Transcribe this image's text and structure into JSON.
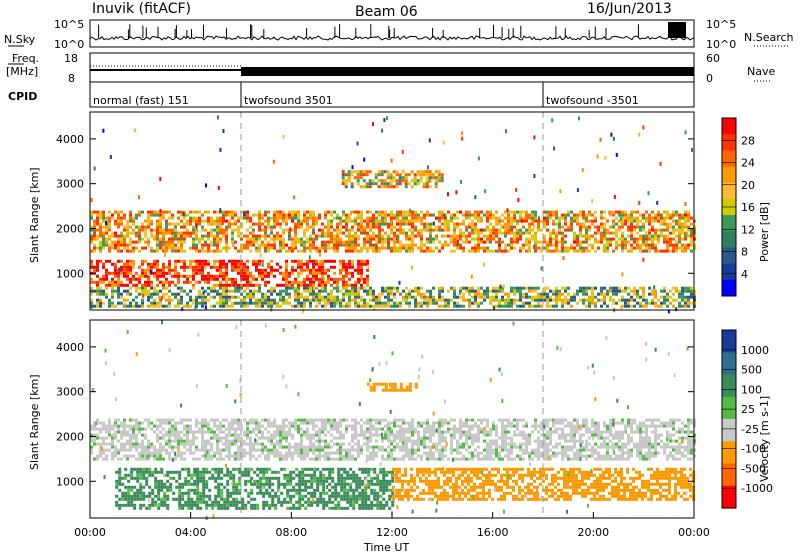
{
  "header": {
    "title": "Inuvik (fitACF)",
    "beam": "Beam 06",
    "date": "16/Jun/2013"
  },
  "panels": {
    "nsky": {
      "label": "N.Sky",
      "right_label": "N.Search",
      "left_ticks": [
        "10^5",
        "10^0"
      ],
      "right_ticks": [
        "10^5",
        "10^0"
      ]
    },
    "freq": {
      "label": "Freq.",
      "unit": "[MHz]",
      "right_label": "Nave",
      "left_ticks": [
        "18",
        "8"
      ],
      "right_ticks": [
        "60",
        "0"
      ]
    },
    "cpid": {
      "label": "CPID",
      "segments": [
        {
          "name": "normal (fast) 151",
          "start_hour": 0,
          "end_hour": 6
        },
        {
          "name": "twofsound 3501",
          "start_hour": 6,
          "end_hour": 18
        },
        {
          "name": "twofsound -3501",
          "start_hour": 18,
          "end_hour": 24
        }
      ]
    }
  },
  "chart_data": [
    {
      "type": "heatmap",
      "title": "",
      "xlabel": "Time UT",
      "ylabel": "Slant Range [km]",
      "xlim": [
        0,
        24
      ],
      "ylim": [
        180,
        4600
      ],
      "yticks": [
        "4000",
        "3000",
        "2000",
        "1000"
      ],
      "ytick_values": [
        4000,
        3000,
        2000,
        1000
      ],
      "colorbar": {
        "label": "Power [dB]",
        "ticks": [
          "28",
          "24",
          "20",
          "16",
          "12",
          "8",
          "4"
        ],
        "tick_values": [
          28,
          24,
          20,
          16,
          12,
          8,
          4
        ],
        "colors": [
          "#ff0000",
          "#ff3300",
          "#ff6600",
          "#ff9900",
          "#ffbb33",
          "#cccc00",
          "#3a9a5a",
          "#2f7f5f",
          "#275a8a",
          "#1a3a9a",
          "#0000ff"
        ]
      },
      "bands": [
        {
          "name": "upper scatter band",
          "range_km": [
            1500,
            2400
          ],
          "time_hours": [
            0,
            24
          ],
          "power_db": 20
        },
        {
          "name": "lower scatter band",
          "range_km": [
            700,
            1300
          ],
          "time_hours": [
            0,
            11
          ],
          "power_db": 26
        },
        {
          "name": "near-range echoes",
          "range_km": [
            250,
            700
          ],
          "time_hours": [
            0,
            24
          ],
          "power_db": 14
        },
        {
          "name": "far-range patch",
          "range_km": [
            2900,
            3300
          ],
          "time_hours": [
            10,
            14
          ],
          "power_db": 18
        }
      ]
    },
    {
      "type": "heatmap",
      "title": "",
      "xlabel": "Time UT",
      "ylabel": "Slant Range [km]",
      "xlim": [
        0,
        24
      ],
      "ylim": [
        180,
        4600
      ],
      "yticks": [
        "4000",
        "3000",
        "2000",
        "1000"
      ],
      "ytick_values": [
        4000,
        3000,
        2000,
        1000
      ],
      "colorbar": {
        "label": "Velocity [m s-1]",
        "ticks": [
          "1000",
          "500",
          "100",
          "25",
          "-25",
          "-100",
          "-500",
          "-1000"
        ],
        "tick_values": [
          1000,
          500,
          100,
          25,
          -25,
          -100,
          -500,
          -1000
        ],
        "colors": [
          "#1a3a9a",
          "#2f6f8f",
          "#3a8a5a",
          "#55bb44",
          "#c8c8c8",
          "#ff9900",
          "#ff6600",
          "#ff0000"
        ]
      },
      "bands": [
        {
          "name": "ground scatter",
          "range_km": [
            1500,
            2400
          ],
          "time_hours": [
            0,
            24
          ],
          "velocity": 0
        },
        {
          "name": "positive flow",
          "range_km": [
            400,
            1300
          ],
          "time_hours": [
            1,
            12
          ],
          "velocity": 100
        },
        {
          "name": "negative flow",
          "range_km": [
            600,
            1300
          ],
          "time_hours": [
            12,
            24
          ],
          "velocity": -200
        },
        {
          "name": "far-range negative",
          "range_km": [
            3000,
            3200
          ],
          "time_hours": [
            11,
            13
          ],
          "velocity": -150
        }
      ]
    }
  ],
  "xaxis": {
    "label": "Time UT",
    "ticks": [
      "00:00",
      "04:00",
      "08:00",
      "12:00",
      "16:00",
      "20:00",
      "00:00"
    ]
  },
  "colors": {
    "ground_scatter": "#c8c8c8",
    "frame": "#000000"
  }
}
